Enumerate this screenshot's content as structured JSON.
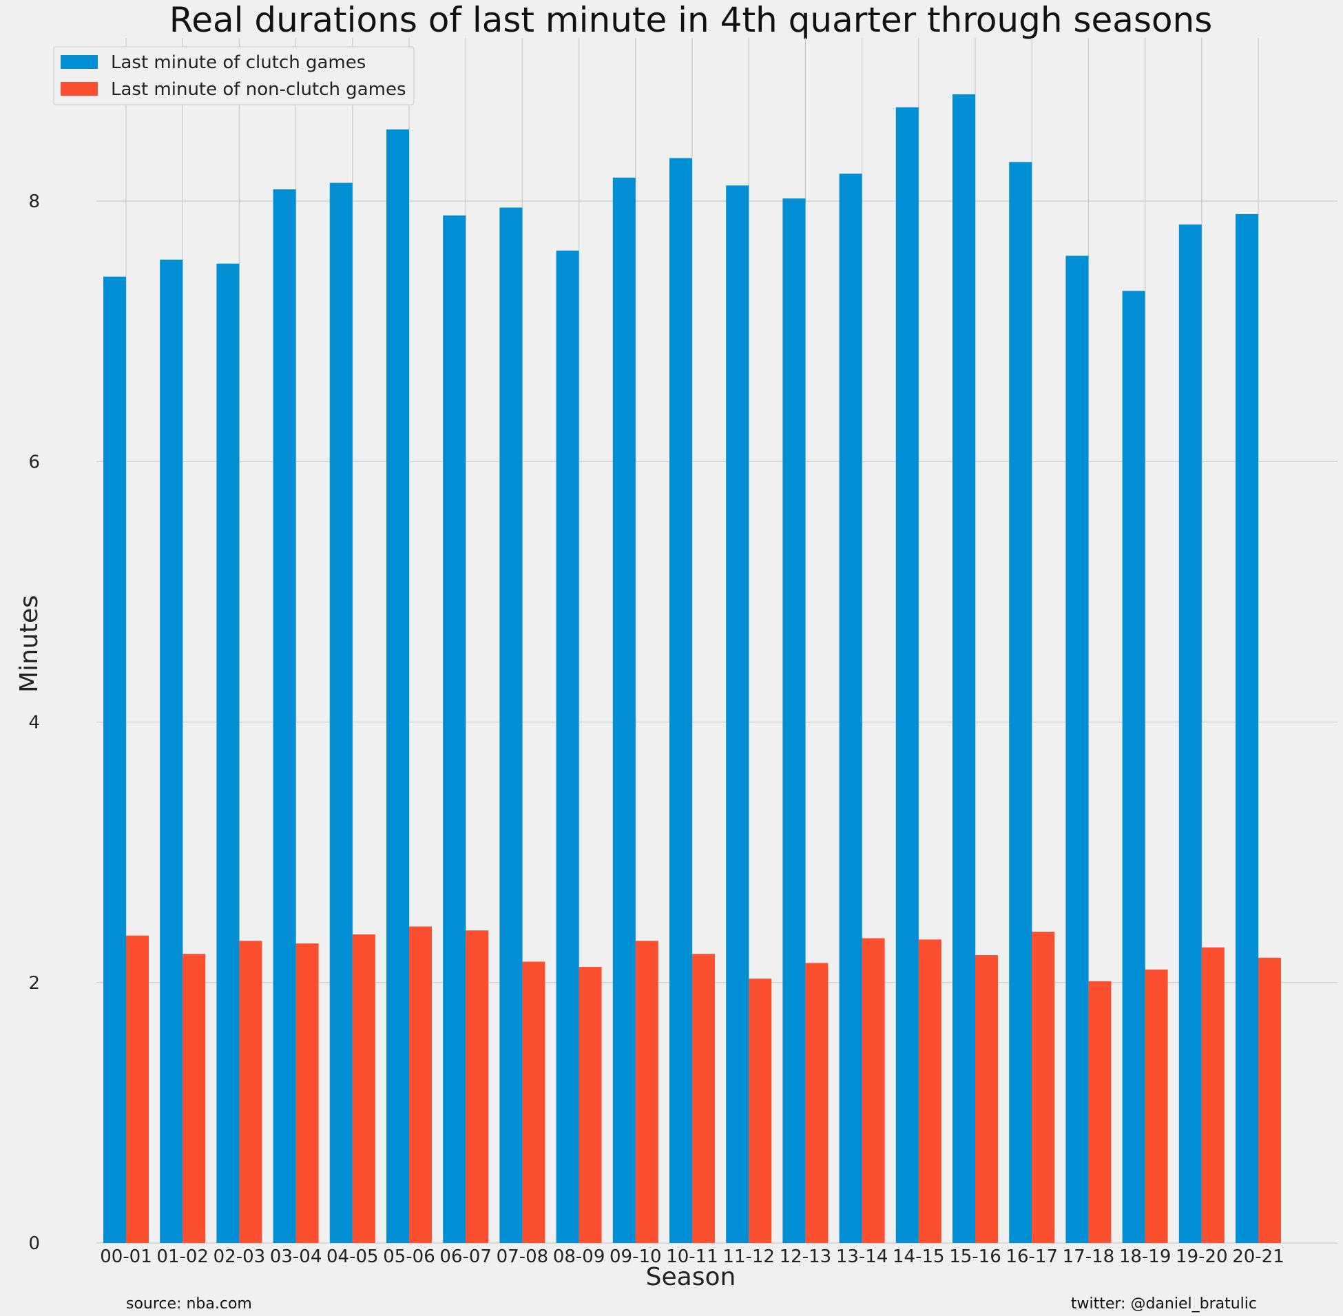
{
  "chart_data": {
    "type": "bar",
    "title": "Real durations of last minute in 4th quarter through seasons",
    "xlabel": "Season",
    "ylabel": "Minutes",
    "ylim": [
      0,
      9.5
    ],
    "yticks": [
      0,
      2,
      4,
      6,
      8
    ],
    "grid": true,
    "legend_position": "top-left",
    "categories": [
      "00-01",
      "01-02",
      "02-03",
      "03-04",
      "04-05",
      "05-06",
      "06-07",
      "07-08",
      "08-09",
      "09-10",
      "10-11",
      "11-12",
      "12-13",
      "13-14",
      "14-15",
      "15-16",
      "16-17",
      "17-18",
      "18-19",
      "19-20",
      "20-21"
    ],
    "series": [
      {
        "name": "Last minute of clutch games",
        "color": "#008fd5",
        "values": [
          7.42,
          7.55,
          7.52,
          8.09,
          8.14,
          8.55,
          7.89,
          7.95,
          7.62,
          8.18,
          8.33,
          8.12,
          8.02,
          8.21,
          8.72,
          8.82,
          8.3,
          7.58,
          7.31,
          7.82,
          7.9
        ]
      },
      {
        "name": "Last minute of non-clutch games",
        "color": "#fc4f30",
        "values": [
          2.36,
          2.22,
          2.32,
          2.3,
          2.37,
          2.43,
          2.4,
          2.16,
          2.12,
          2.32,
          2.22,
          2.03,
          2.15,
          2.34,
          2.33,
          2.21,
          2.39,
          2.01,
          2.1,
          2.27,
          2.19
        ]
      }
    ]
  },
  "footer": {
    "source": "source: nba.com",
    "credit": "twitter: @daniel_bratulic"
  }
}
